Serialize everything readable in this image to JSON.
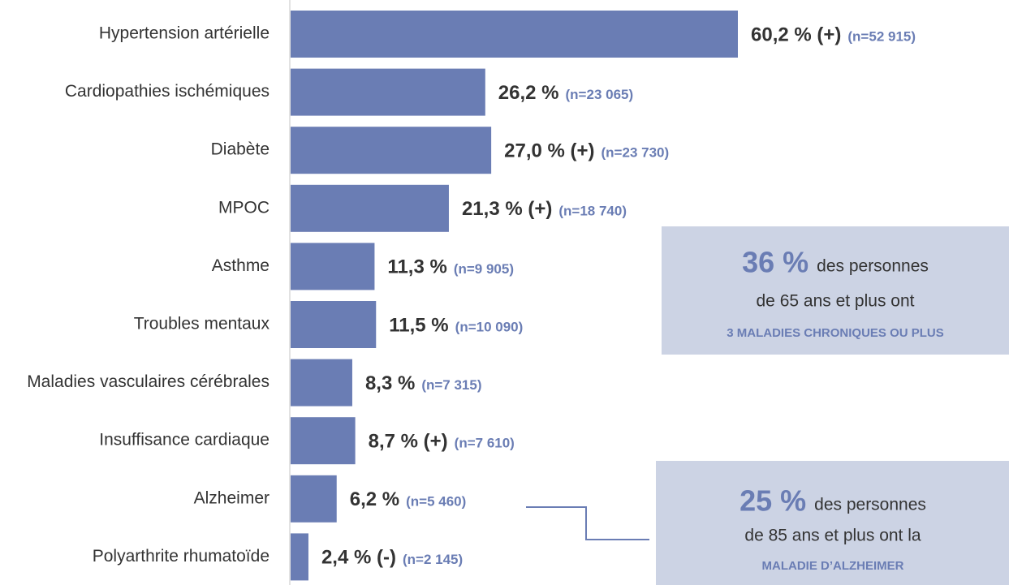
{
  "chart_data": {
    "type": "barh",
    "categories": [
      "Hypertension artérielle",
      "Cardiopathies ischémiques",
      "Diabète",
      "MPOC",
      "Asthme",
      "Troubles mentaux",
      "Maladies vasculaires cérébrales",
      "Insuffisance cardiaque",
      "Alzheimer",
      "Polyarthrite rhumatoïde"
    ],
    "values": [
      60.2,
      26.2,
      27.0,
      21.3,
      11.3,
      11.5,
      8.3,
      8.7,
      6.2,
      2.4
    ],
    "value_labels": [
      "60,2 % (+)",
      "26,2 %",
      "27,0 % (+)",
      "21,3 % (+)",
      "11,3 %",
      "11,5 %",
      "8,3 %",
      "8,7 % (+)",
      "6,2 %",
      "2,4 % (-)"
    ],
    "n_labels": [
      "(n=52 915)",
      "(n=23 065)",
      "(n=23 730)",
      "(n=18 740)",
      "(n=9 905)",
      "(n=10 090)",
      "(n=7 315)",
      "(n=7 610)",
      "(n=5 460)",
      "(n=2 145)"
    ],
    "color": "#6a7db4",
    "annotations": [
      {
        "highlight": "36 %",
        "text": "des personnes",
        "line2": "de 65 ans et plus ont",
        "line3": "3 MALADIES CHRONIQUES OU PLUS"
      },
      {
        "highlight": "25 %",
        "text": "des personnes",
        "line2": "de 85 ans et plus ont la",
        "line3": "MALADIE D’ALZHEIMER"
      }
    ]
  }
}
